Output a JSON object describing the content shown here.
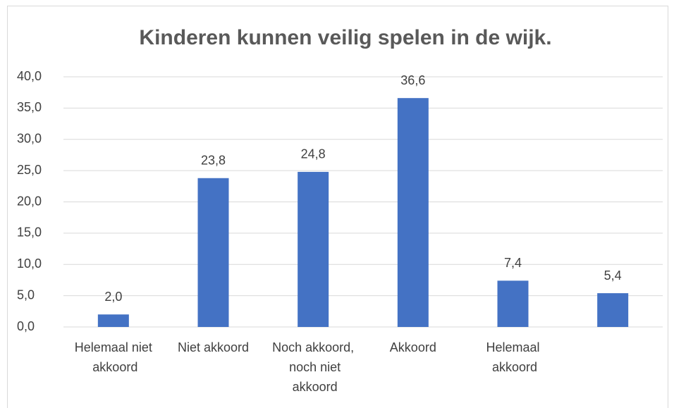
{
  "chart_data": {
    "type": "bar",
    "title": "Kinderen kunnen veilig spelen in de wijk.",
    "categories": [
      "Helemaal niet akkoord",
      "Niet akkoord",
      "Noch akkoord, noch niet akkoord",
      "Akkoord",
      "Helemaal akkoord",
      null
    ],
    "values": [
      2.0,
      23.8,
      24.8,
      36.6,
      7.4,
      5.4
    ],
    "value_labels": [
      "2,0",
      "23,8",
      "24,8",
      "36,6",
      "7,4",
      "5,4"
    ],
    "color": "#4472c4",
    "ylim": [
      0,
      40
    ],
    "yticks": [
      {
        "value": 0,
        "label": "0,0"
      },
      {
        "value": 5,
        "label": "5,0"
      },
      {
        "value": 10,
        "label": "10,0"
      },
      {
        "value": 15,
        "label": "15,0"
      },
      {
        "value": 20,
        "label": "20,0"
      },
      {
        "value": 25,
        "label": "25,0"
      },
      {
        "value": 30,
        "label": "30,0"
      },
      {
        "value": 35,
        "label": "35,0"
      },
      {
        "value": 40,
        "label": "40,0"
      }
    ],
    "grid": true
  }
}
